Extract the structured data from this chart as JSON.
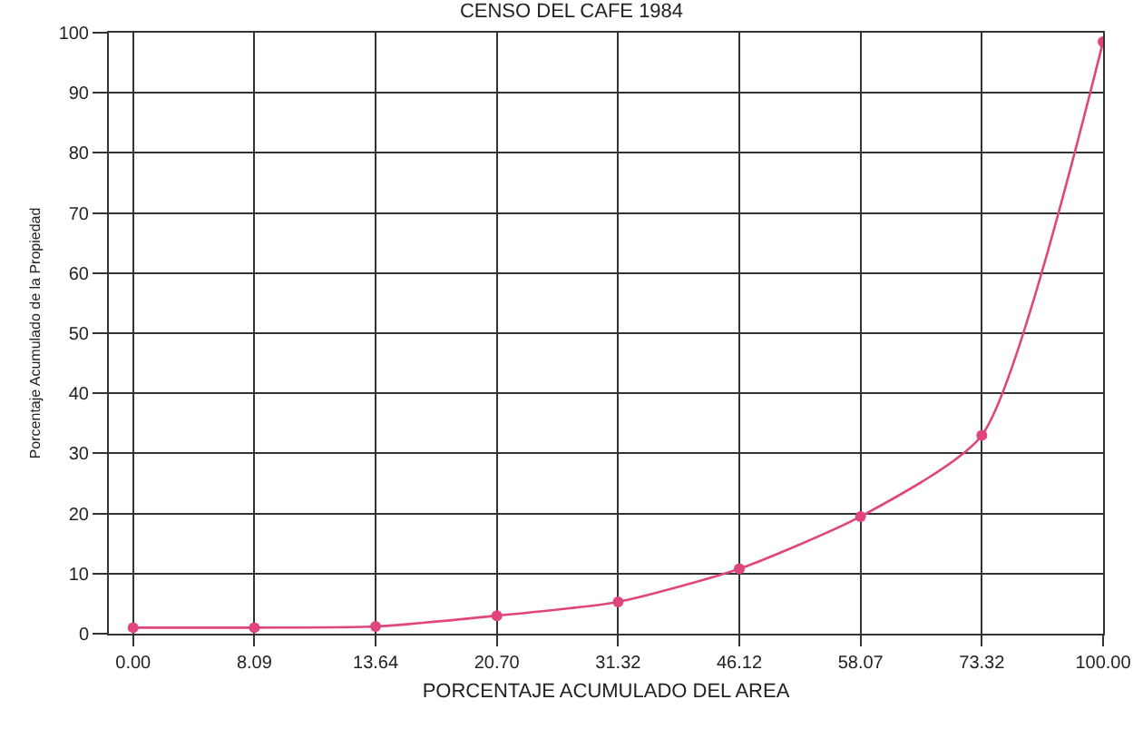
{
  "chart_data": {
    "type": "line",
    "title": "CENSO DEL CAFE 1984",
    "xlabel": "PORCENTAJE ACUMULADO DEL AREA",
    "ylabel": "Porcentaje Acumulado de la Propiedad",
    "categories": [
      "0.00",
      "8.09",
      "13.64",
      "20.70",
      "31.32",
      "46.12",
      "58.07",
      "73.32",
      "100.00"
    ],
    "series": [
      {
        "color": "#e0457b",
        "values": [
          1,
          1,
          1.2,
          3,
          5.3,
          10.8,
          19.5,
          33,
          98.5
        ]
      }
    ],
    "ylim": [
      0,
      100
    ],
    "yticks": [
      0,
      10,
      20,
      30,
      40,
      50,
      60,
      70,
      80,
      90,
      100
    ],
    "grid": true,
    "marker": "circle",
    "line_style": "solid",
    "legend": false
  }
}
